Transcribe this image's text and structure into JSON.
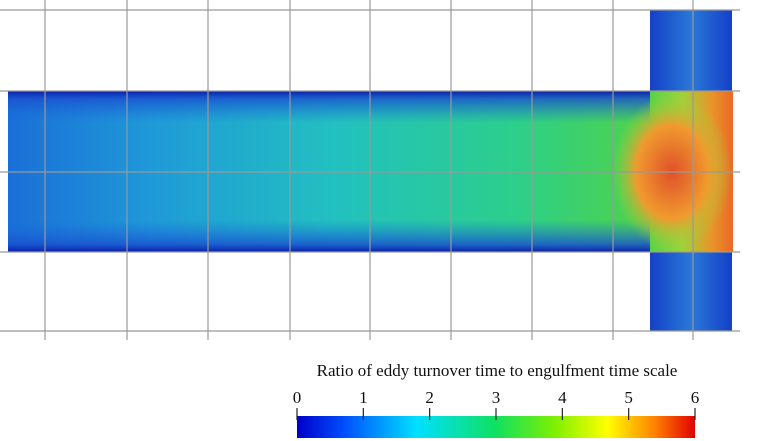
{
  "colorbar": {
    "title": "Ratio of eddy turnover time to engulfment time scale",
    "lim": [
      0,
      6
    ],
    "ticks": [
      0,
      1,
      2,
      3,
      4,
      5,
      6
    ]
  }
}
